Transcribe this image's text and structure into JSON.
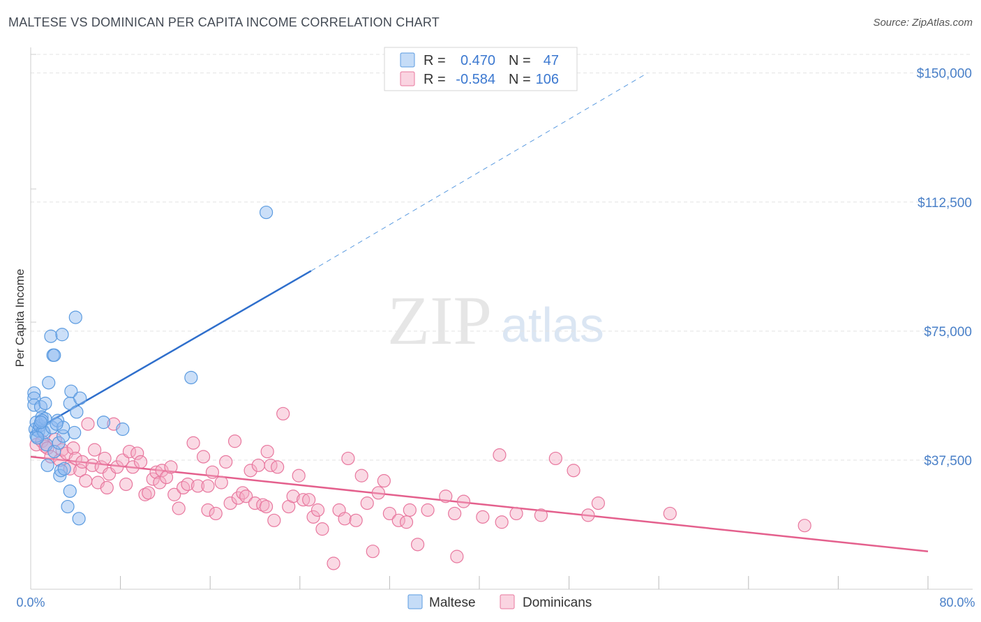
{
  "title": "MALTESE VS DOMINICAN PER CAPITA INCOME CORRELATION CHART",
  "source": "Source: ZipAtlas.com",
  "watermark": {
    "zip": "ZIP",
    "atlas": "atlas"
  },
  "colors": {
    "maltese": "#5b9be0",
    "maltese_fill": "rgba(140,185,240,0.45)",
    "maltese_line": "#2f6fcc",
    "dominicans": "#e8779e",
    "dominicans_fill": "rgba(245,170,195,0.45)",
    "dominicans_line": "#e4608d",
    "tick_text": "#4a80c8"
  },
  "legend": {
    "rows": [
      {
        "r_label": "R =",
        "r_value": "0.470",
        "n_label": "N =",
        "n_value": "47"
      },
      {
        "r_label": "R =",
        "r_value": "-0.584",
        "n_label": "N =",
        "n_value": "106"
      }
    ]
  },
  "bottom_legend": [
    "Maltese",
    "Dominicans"
  ],
  "chart_data": {
    "type": "scatter",
    "title": "MALTESE VS DOMINICAN PER CAPITA INCOME CORRELATION CHART",
    "xlabel": "",
    "ylabel": "Per Capita Income",
    "xlim": [
      0,
      80
    ],
    "ylim": [
      0,
      155000
    ],
    "x_tick_labels": [
      "0.0%",
      "80.0%"
    ],
    "y_ticks": [
      37500,
      75000,
      112500,
      150000
    ],
    "y_tick_labels": [
      "$37,500",
      "$75,000",
      "$112,500",
      "$150,000"
    ],
    "grid": true,
    "legend_position": "top-center",
    "series": [
      {
        "name": "Maltese",
        "stats": {
          "R": 0.47,
          "N": 47
        },
        "trend": {
          "x": [
            0,
            25
          ],
          "y": [
            45500,
            92500
          ],
          "dashed_extension_to": [
            55,
            150000
          ]
        },
        "points": [
          [
            0.3,
            57000
          ],
          [
            0.3,
            55500
          ],
          [
            0.3,
            53500
          ],
          [
            0.4,
            46500
          ],
          [
            0.5,
            44500
          ],
          [
            0.5,
            48500
          ],
          [
            0.7,
            46000
          ],
          [
            0.8,
            47500
          ],
          [
            0.9,
            53000
          ],
          [
            1.0,
            50000
          ],
          [
            1.1,
            46000
          ],
          [
            1.2,
            45500
          ],
          [
            1.3,
            49500
          ],
          [
            1.3,
            54000
          ],
          [
            1.4,
            42000
          ],
          [
            1.5,
            36000
          ],
          [
            1.6,
            60000
          ],
          [
            1.8,
            73500
          ],
          [
            1.9,
            47000
          ],
          [
            2.0,
            68000
          ],
          [
            2.1,
            40000
          ],
          [
            2.1,
            68000
          ],
          [
            2.4,
            49000
          ],
          [
            2.5,
            42500
          ],
          [
            2.6,
            33000
          ],
          [
            2.7,
            34500
          ],
          [
            2.8,
            74000
          ],
          [
            2.9,
            44500
          ],
          [
            2.9,
            47000
          ],
          [
            3.0,
            35000
          ],
          [
            3.3,
            24000
          ],
          [
            3.5,
            28500
          ],
          [
            3.5,
            54000
          ],
          [
            3.6,
            57500
          ],
          [
            3.9,
            45500
          ],
          [
            4.0,
            79000
          ],
          [
            4.1,
            51500
          ],
          [
            4.3,
            20500
          ],
          [
            4.4,
            55500
          ],
          [
            6.5,
            48500
          ],
          [
            8.2,
            46500
          ],
          [
            14.3,
            61500
          ],
          [
            21.0,
            109500
          ],
          [
            1.0,
            49000
          ],
          [
            0.6,
            44000
          ],
          [
            2.3,
            48000
          ],
          [
            0.9,
            48500
          ]
        ]
      },
      {
        "name": "Dominicans",
        "stats": {
          "R": -0.584,
          "N": 106
        },
        "trend": {
          "x": [
            0,
            80
          ],
          "y": [
            38500,
            11000
          ]
        },
        "points": [
          [
            0.5,
            42000
          ],
          [
            1.0,
            43000
          ],
          [
            1.3,
            41500
          ],
          [
            1.5,
            41000
          ],
          [
            1.8,
            38500
          ],
          [
            2.2,
            43500
          ],
          [
            2.6,
            37500
          ],
          [
            2.8,
            40500
          ],
          [
            3.2,
            39500
          ],
          [
            3.5,
            35000
          ],
          [
            3.8,
            41000
          ],
          [
            4.0,
            38000
          ],
          [
            4.4,
            34500
          ],
          [
            4.6,
            37000
          ],
          [
            4.9,
            31500
          ],
          [
            5.1,
            48000
          ],
          [
            5.5,
            36000
          ],
          [
            5.7,
            40500
          ],
          [
            6.0,
            31000
          ],
          [
            6.3,
            35500
          ],
          [
            6.6,
            38000
          ],
          [
            6.8,
            29500
          ],
          [
            7.0,
            33500
          ],
          [
            7.4,
            48000
          ],
          [
            7.7,
            35500
          ],
          [
            8.2,
            37500
          ],
          [
            8.5,
            30500
          ],
          [
            8.8,
            40000
          ],
          [
            9.1,
            35500
          ],
          [
            9.5,
            39500
          ],
          [
            9.8,
            37000
          ],
          [
            10.2,
            27500
          ],
          [
            10.5,
            28000
          ],
          [
            10.9,
            32000
          ],
          [
            11.2,
            34000
          ],
          [
            11.5,
            31000
          ],
          [
            11.7,
            34500
          ],
          [
            12.1,
            32500
          ],
          [
            12.5,
            35500
          ],
          [
            12.8,
            27500
          ],
          [
            13.2,
            23500
          ],
          [
            13.6,
            29500
          ],
          [
            14.0,
            30500
          ],
          [
            14.5,
            42500
          ],
          [
            14.9,
            30000
          ],
          [
            15.4,
            38500
          ],
          [
            15.8,
            23000
          ],
          [
            16.2,
            34000
          ],
          [
            16.5,
            22000
          ],
          [
            17.0,
            31000
          ],
          [
            17.4,
            37000
          ],
          [
            17.8,
            25000
          ],
          [
            18.2,
            43000
          ],
          [
            18.5,
            26500
          ],
          [
            18.9,
            28000
          ],
          [
            19.2,
            27000
          ],
          [
            19.6,
            34500
          ],
          [
            20.0,
            25000
          ],
          [
            20.3,
            36000
          ],
          [
            20.7,
            24500
          ],
          [
            21.0,
            24000
          ],
          [
            21.4,
            36000
          ],
          [
            21.7,
            20000
          ],
          [
            22.0,
            35500
          ],
          [
            22.5,
            51000
          ],
          [
            23.0,
            24000
          ],
          [
            23.4,
            27000
          ],
          [
            23.9,
            33000
          ],
          [
            24.3,
            26000
          ],
          [
            24.8,
            26000
          ],
          [
            25.2,
            21000
          ],
          [
            25.6,
            23000
          ],
          [
            26.0,
            17500
          ],
          [
            27.0,
            7500
          ],
          [
            27.5,
            23000
          ],
          [
            28.0,
            20500
          ],
          [
            28.3,
            38000
          ],
          [
            29.0,
            20000
          ],
          [
            29.5,
            33000
          ],
          [
            30.0,
            25000
          ],
          [
            30.5,
            11000
          ],
          [
            31.0,
            28000
          ],
          [
            31.5,
            31500
          ],
          [
            32.0,
            22000
          ],
          [
            32.8,
            20000
          ],
          [
            33.5,
            19500
          ],
          [
            33.8,
            23000
          ],
          [
            34.5,
            13000
          ],
          [
            35.4,
            23000
          ],
          [
            37.0,
            27000
          ],
          [
            38.0,
            9500
          ],
          [
            38.6,
            25500
          ],
          [
            40.3,
            21000
          ],
          [
            41.8,
            39000
          ],
          [
            42.0,
            19500
          ],
          [
            43.3,
            22000
          ],
          [
            45.5,
            21500
          ],
          [
            46.8,
            38000
          ],
          [
            48.4,
            34500
          ],
          [
            49.7,
            21500
          ],
          [
            50.6,
            25000
          ],
          [
            57.0,
            22000
          ],
          [
            69.0,
            18500
          ],
          [
            21.1,
            40000
          ],
          [
            37.8,
            22000
          ],
          [
            15.8,
            30000
          ]
        ]
      }
    ]
  }
}
